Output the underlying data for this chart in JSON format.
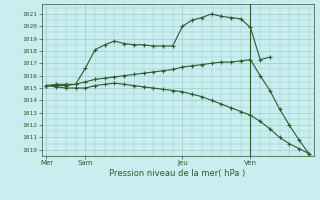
{
  "background_color": "#c8eef0",
  "grid_color": "#99cccc",
  "line_color": "#2d5a2d",
  "title": "Pression niveau de la mer( hPa )",
  "ylabel_ticks": [
    1010,
    1011,
    1012,
    1013,
    1014,
    1015,
    1016,
    1017,
    1018,
    1019,
    1020,
    1021
  ],
  "ylim": [
    1009.5,
    1021.8
  ],
  "day_labels": [
    "Mer",
    "Sam",
    "Jeu",
    "Ven"
  ],
  "day_positions": [
    0,
    4,
    14,
    21
  ],
  "vline_x": 21,
  "xlim": [
    -0.5,
    27.5
  ],
  "series1_x": [
    0,
    1,
    2,
    3,
    4,
    5,
    6,
    7,
    8,
    9,
    10,
    11,
    12,
    13,
    14,
    15,
    16,
    17,
    18,
    19,
    20,
    21,
    22,
    23
  ],
  "series1_y": [
    1015.2,
    1015.3,
    1015.3,
    1015.3,
    1016.6,
    1018.1,
    1018.5,
    1018.8,
    1018.6,
    1018.5,
    1018.5,
    1018.4,
    1018.4,
    1018.4,
    1020.0,
    1020.5,
    1020.7,
    1021.0,
    1020.8,
    1020.7,
    1020.6,
    1019.9,
    1017.3,
    1017.5
  ],
  "series2_x": [
    0,
    1,
    2,
    3,
    4,
    5,
    6,
    7,
    8,
    9,
    10,
    11,
    12,
    13,
    14,
    15,
    16,
    17,
    18,
    19,
    20,
    21,
    22,
    23,
    24,
    25,
    26,
    27
  ],
  "series2_y": [
    1015.2,
    1015.2,
    1015.2,
    1015.3,
    1015.5,
    1015.7,
    1015.8,
    1015.9,
    1016.0,
    1016.1,
    1016.2,
    1016.3,
    1016.4,
    1016.5,
    1016.7,
    1016.8,
    1016.9,
    1017.0,
    1017.1,
    1017.1,
    1017.2,
    1017.3,
    1016.0,
    1014.8,
    1013.3,
    1012.0,
    1010.8,
    1009.7
  ],
  "series3_x": [
    0,
    1,
    2,
    3,
    4,
    5,
    6,
    7,
    8,
    9,
    10,
    11,
    12,
    13,
    14,
    15,
    16,
    17,
    18,
    19,
    20,
    21,
    22,
    23,
    24,
    25,
    26,
    27
  ],
  "series3_y": [
    1015.2,
    1015.1,
    1015.0,
    1015.0,
    1015.0,
    1015.2,
    1015.3,
    1015.4,
    1015.3,
    1015.2,
    1015.1,
    1015.0,
    1014.9,
    1014.8,
    1014.7,
    1014.5,
    1014.3,
    1014.0,
    1013.7,
    1013.4,
    1013.1,
    1012.8,
    1012.3,
    1011.7,
    1011.0,
    1010.5,
    1010.1,
    1009.7
  ]
}
